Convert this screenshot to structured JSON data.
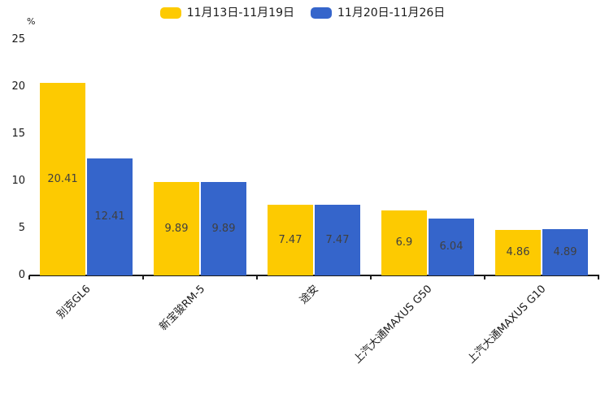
{
  "chart_data": {
    "type": "bar",
    "title": "",
    "unit_label": "%",
    "categories": [
      "别克GL6",
      "新宝骏RM-5",
      "途安",
      "上汽大通MAXUS G50",
      "上汽大通MAXUS G10"
    ],
    "series": [
      {
        "name": "11月13日-11月19日",
        "color": "#FDCA01",
        "values": [
          20.41,
          9.89,
          7.47,
          6.9,
          4.86
        ]
      },
      {
        "name": "11月20日-11月26日",
        "color": "#3565CB",
        "values": [
          12.41,
          9.89,
          7.47,
          6.04,
          4.89
        ]
      }
    ],
    "ylim": [
      0,
      25
    ],
    "yticks": [
      0,
      5,
      10,
      15,
      20,
      25
    ],
    "grid": false,
    "legend_position": "top",
    "value_label_position": "inside-center",
    "value_label_color": "#404040",
    "axis_color": "#1a1a1a",
    "x_label_rotation": -45
  }
}
